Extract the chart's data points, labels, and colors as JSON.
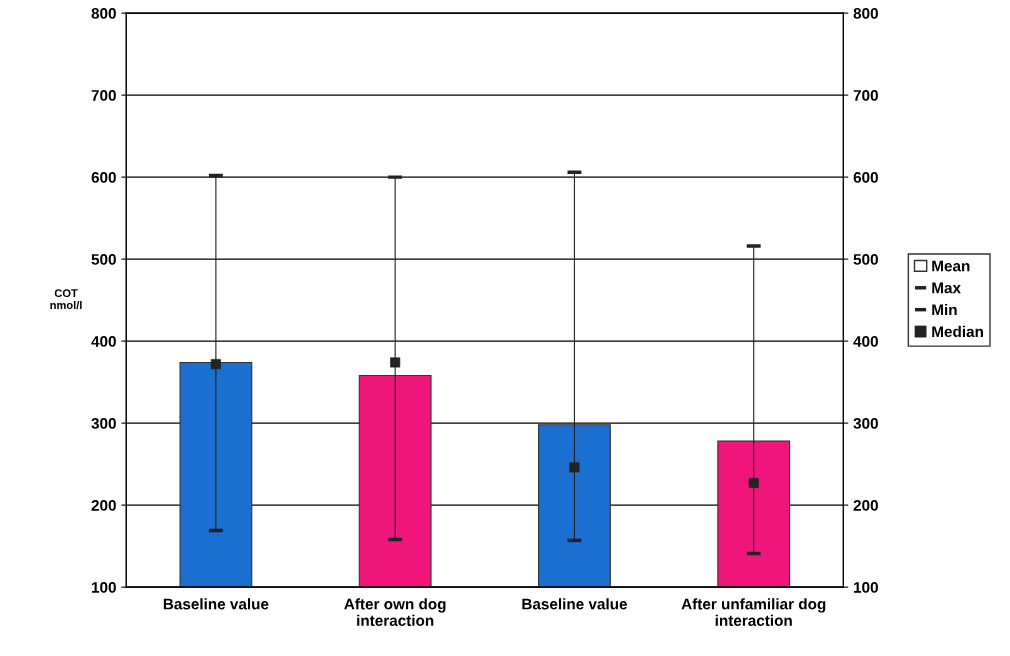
{
  "chart_data": {
    "type": "bar",
    "ylabel": "COT\nnmol/l",
    "categories": [
      "Baseline value",
      "After own dog\ninteraction",
      "Baseline value",
      "After unfamiliar dog\ninteraction"
    ],
    "series": [
      {
        "name": "Mean",
        "colors": [
          "#1a6fd0",
          "#f0157a",
          "#1a6fd0",
          "#f0157a"
        ],
        "values": [
          374,
          358,
          298,
          278
        ],
        "errors": [
          [
            169,
            602
          ],
          [
            158,
            600
          ],
          [
            157,
            606
          ],
          [
            141,
            516
          ]
        ]
      },
      {
        "name": "Median",
        "type": "scatter",
        "marker": "square",
        "color": "#222222",
        "values": [
          372,
          374,
          246,
          227
        ]
      }
    ],
    "ylim": [
      100,
      800
    ],
    "yticks": [
      100,
      200,
      300,
      400,
      500,
      600,
      700,
      800
    ],
    "y2lim": [
      100,
      800
    ],
    "y2ticks": [
      100,
      200,
      300,
      400,
      500,
      600,
      700,
      800
    ],
    "annotations": [
      "Max",
      "Min"
    ],
    "grid": "y",
    "legend": "right"
  }
}
